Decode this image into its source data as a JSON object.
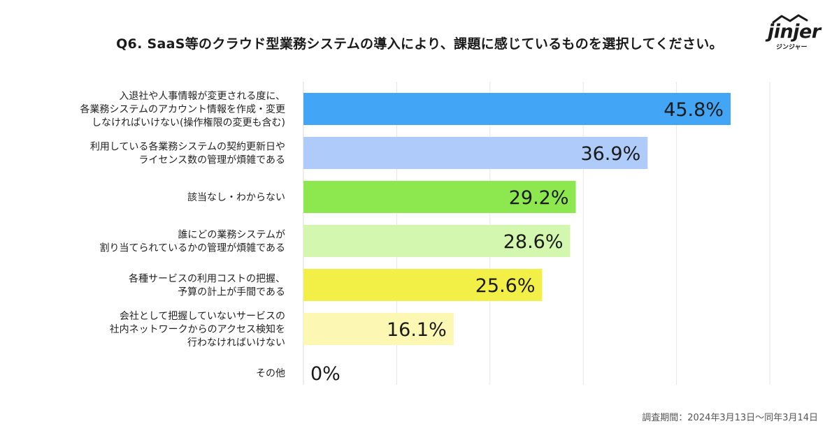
{
  "title": "Q6. SaaS等のクラウド型業務システムの導入により、課題に感じているものを選択してください。",
  "logo": {
    "word": "jinjer",
    "kana": "ジンジャー"
  },
  "footnote": "調査期間：2024年3月13日〜同年3月14日",
  "chart_data": {
    "type": "bar",
    "orientation": "horizontal",
    "categories": [
      [
        "入退社や人事情報が変更される度に、",
        "各業務システムのアカウント情報を作成・変更",
        "しなければいけない(操作権限の変更も含む)"
      ],
      [
        "利用している各業務システムの契約更新日や",
        "ライセンス数の管理が煩雑である"
      ],
      [
        "該当なし・わからない"
      ],
      [
        "誰にどの業務システムが",
        "割り当てられているかの管理が煩雑である"
      ],
      [
        "各種サービスの利用コストの把握、",
        "予算の計上が手間である"
      ],
      [
        "会社として把握していないサービスの",
        "社内ネットワークからのアクセス検知を",
        "行わなければいけない"
      ],
      [
        "その他"
      ]
    ],
    "values": [
      45.8,
      36.9,
      29.2,
      28.6,
      25.6,
      16.1,
      0
    ],
    "value_labels": [
      "45.8%",
      "36.9%",
      "29.2%",
      "28.6%",
      "25.6%",
      "16.1%",
      "0%"
    ],
    "colors": [
      "#42a5f5",
      "#aecbfa",
      "#8de84f",
      "#d4f7b0",
      "#f2f047",
      "#fcf7b3",
      "#ffffff"
    ],
    "xlim": [
      0,
      50
    ],
    "grid": true,
    "gridlines": [
      0,
      10,
      20,
      30,
      40,
      50
    ]
  }
}
